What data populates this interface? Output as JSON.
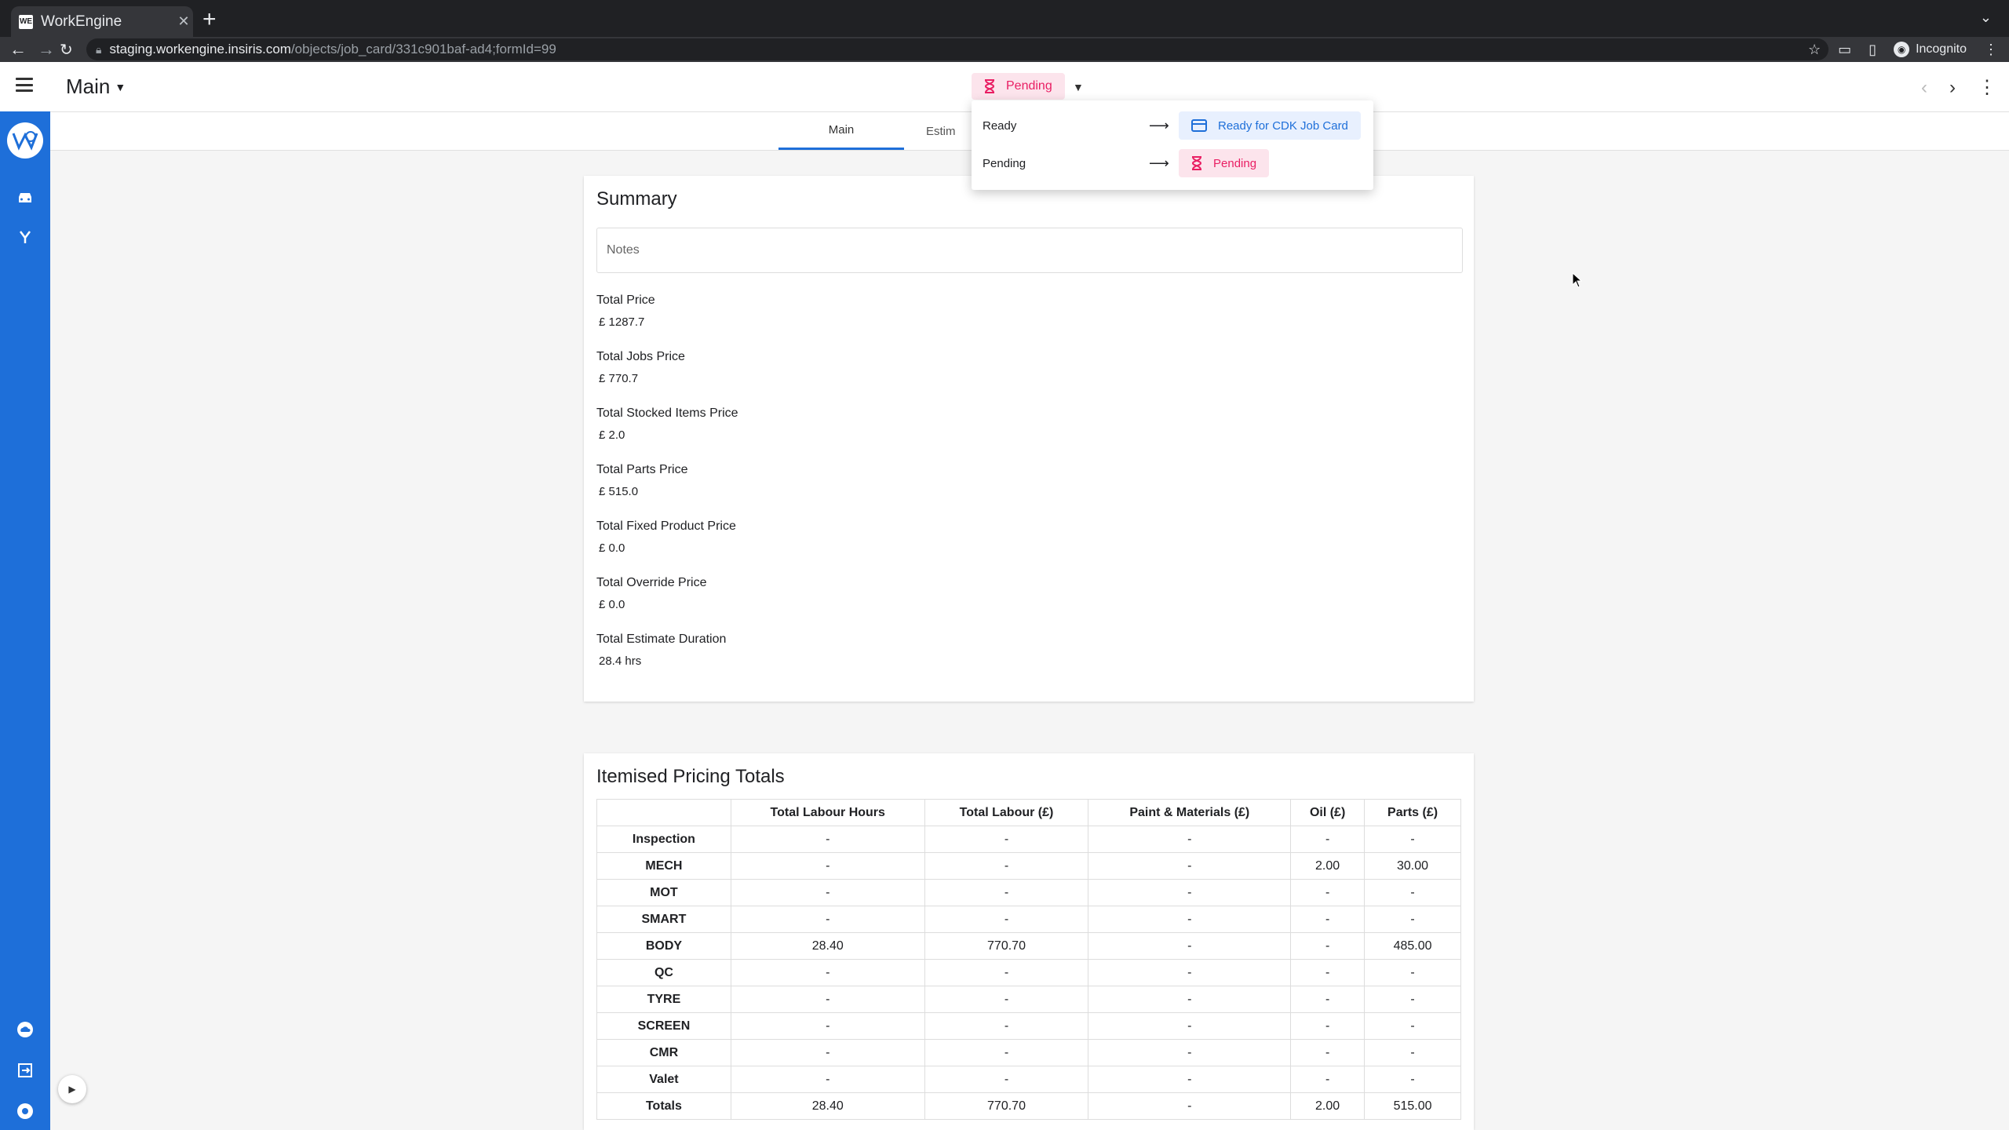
{
  "browser": {
    "tab_title": "WorkEngine",
    "favicon_text": "WE",
    "url_host": "staging.workengine.insiris.com",
    "url_path": "/objects/job_card/331c901baf-ad4;formId=99",
    "incognito_label": "Incognito"
  },
  "header": {
    "menu_label": "Main",
    "status_label": "Pending"
  },
  "tabs": [
    {
      "label": "Main"
    },
    {
      "label": "Estim"
    }
  ],
  "status_dropdown": {
    "rows": [
      {
        "label": "Ready",
        "target": "Ready for CDK Job Card"
      },
      {
        "label": "Pending",
        "target": "Pending"
      }
    ]
  },
  "summary": {
    "title": "Summary",
    "notes_placeholder": "Notes",
    "fields": [
      {
        "label": "Total Price",
        "value": "£ 1287.7"
      },
      {
        "label": "Total Jobs Price",
        "value": "£ 770.7"
      },
      {
        "label": "Total Stocked Items Price",
        "value": "£ 2.0"
      },
      {
        "label": "Total Parts Price",
        "value": "£ 515.0"
      },
      {
        "label": "Total Fixed Product Price",
        "value": "£ 0.0"
      },
      {
        "label": "Total Override Price",
        "value": "£ 0.0"
      },
      {
        "label": "Total Estimate Duration",
        "value": "28.4 hrs"
      }
    ]
  },
  "pricing": {
    "title": "Itemised Pricing Totals",
    "columns": [
      "",
      "Total Labour Hours",
      "Total Labour (£)",
      "Paint & Materials (£)",
      "Oil (£)",
      "Parts (£)"
    ],
    "rows": [
      [
        "Inspection",
        "-",
        "-",
        "-",
        "-",
        "-"
      ],
      [
        "MECH",
        "-",
        "-",
        "-",
        "2.00",
        "30.00"
      ],
      [
        "MOT",
        "-",
        "-",
        "-",
        "-",
        "-"
      ],
      [
        "SMART",
        "-",
        "-",
        "-",
        "-",
        "-"
      ],
      [
        "BODY",
        "28.40",
        "770.70",
        "-",
        "-",
        "485.00"
      ],
      [
        "QC",
        "-",
        "-",
        "-",
        "-",
        "-"
      ],
      [
        "TYRE",
        "-",
        "-",
        "-",
        "-",
        "-"
      ],
      [
        "SCREEN",
        "-",
        "-",
        "-",
        "-",
        "-"
      ],
      [
        "CMR",
        "-",
        "-",
        "-",
        "-",
        "-"
      ],
      [
        "Valet",
        "-",
        "-",
        "-",
        "-",
        "-"
      ],
      [
        "Totals",
        "28.40",
        "770.70",
        "-",
        "2.00",
        "515.00"
      ]
    ]
  },
  "colors": {
    "accent": "#1e6fd9",
    "pending": "#e91e63",
    "pending_bg": "#fce4ec"
  }
}
